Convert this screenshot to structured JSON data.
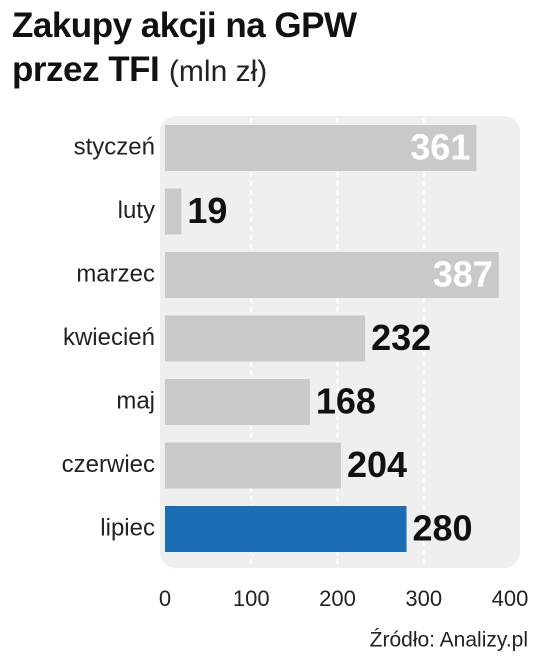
{
  "chart_data": {
    "type": "bar",
    "orientation": "horizontal",
    "title": "Zakupy akcji na GPW przez TFI",
    "subtitle": "(mln zł)",
    "categories": [
      "styczeń",
      "luty",
      "marzec",
      "kwiecień",
      "maj",
      "czerwiec",
      "lipiec"
    ],
    "values": [
      361,
      19,
      387,
      232,
      168,
      204,
      280
    ],
    "colors": [
      "#c9c9c9",
      "#c9c9c9",
      "#c9c9c9",
      "#c9c9c9",
      "#c9c9c9",
      "#c9c9c9",
      "#1a6db3"
    ],
    "xlim": [
      0,
      400
    ],
    "xticks": [
      0,
      100,
      200,
      300,
      400
    ],
    "grid": true,
    "source": "Źródło: Analizy.pl"
  }
}
